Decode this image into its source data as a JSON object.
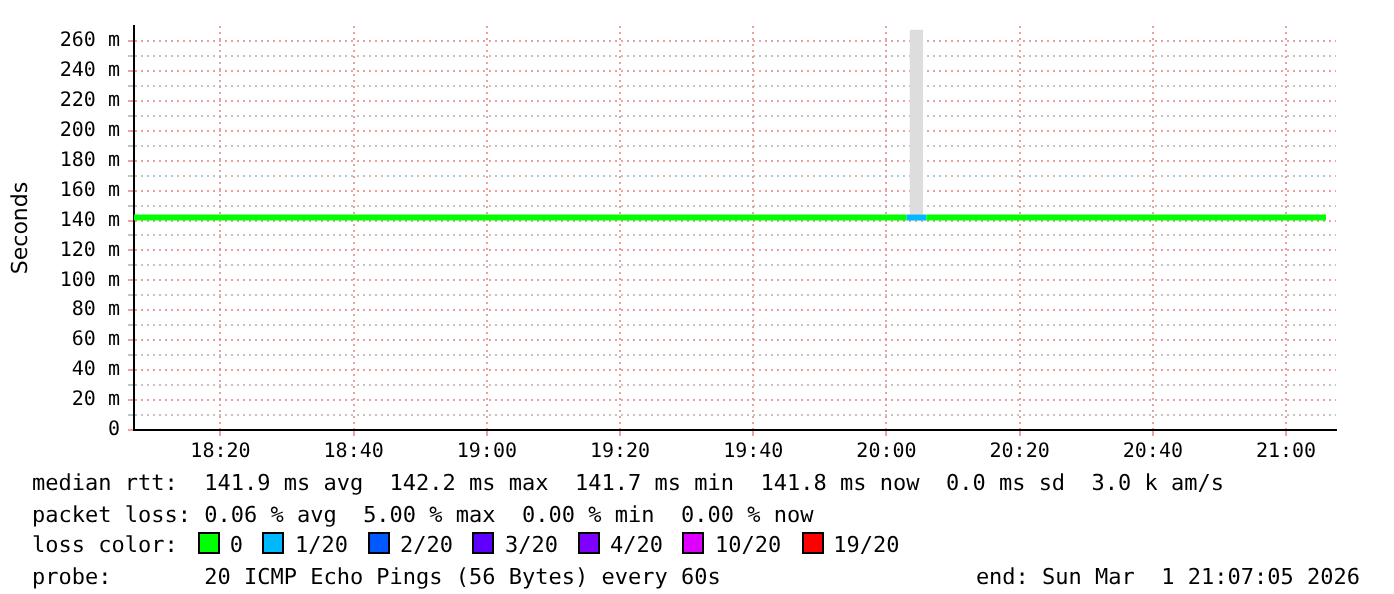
{
  "chart_data": {
    "type": "line",
    "ylabel": "Seconds",
    "legend_title": "loss color:",
    "legend": "bottom",
    "grid": true,
    "marker": "none",
    "line_style": "solid",
    "xlim": [
      18.117,
      21.125
    ],
    "ylim": [
      0,
      270
    ],
    "xticks": [
      {
        "value": 18.3333,
        "label": "18:20"
      },
      {
        "value": 18.6667,
        "label": "18:40"
      },
      {
        "value": 19,
        "label": "19:00"
      },
      {
        "value": 19.3333,
        "label": "19:20"
      },
      {
        "value": 19.6667,
        "label": "19:40"
      },
      {
        "value": 20,
        "label": "20:00"
      },
      {
        "value": 20.3333,
        "label": "20:20"
      },
      {
        "value": 20.6667,
        "label": "20:40"
      },
      {
        "value": 21,
        "label": "21:00"
      }
    ],
    "yticks": [
      0,
      {
        "value": 10,
        "label": null
      },
      {
        "value": 20,
        "label": "20 m"
      },
      {
        "value": 30,
        "label": null
      },
      {
        "value": 40,
        "label": "40 m"
      },
      {
        "value": 50,
        "label": null
      },
      {
        "value": 60,
        "label": "60 m"
      },
      {
        "value": 70,
        "label": null
      },
      {
        "value": 80,
        "label": "80 m"
      },
      {
        "value": 90,
        "label": null
      },
      {
        "value": 100,
        "label": "100 m"
      },
      {
        "value": 110,
        "label": null
      },
      {
        "value": 120,
        "label": "120 m"
      },
      {
        "value": 130,
        "label": null
      },
      {
        "value": 140,
        "label": "140 m"
      },
      {
        "value": 150,
        "label": null
      },
      {
        "value": 160,
        "label": "160 m"
      },
      {
        "value": 170,
        "label": null
      },
      {
        "value": 180,
        "label": "180 m"
      },
      {
        "value": 190,
        "label": null
      },
      {
        "value": 200,
        "label": "200 m"
      },
      {
        "value": 210,
        "label": null
      },
      {
        "value": 220,
        "label": "220 m"
      },
      {
        "value": 230,
        "label": null
      },
      {
        "value": 240,
        "label": "240 m"
      },
      {
        "value": 250,
        "label": null
      },
      {
        "value": 260,
        "label": "260 m"
      }
    ],
    "series": [
      {
        "type": "bar",
        "color": "#dddddd",
        "x": [
          20.075
        ],
        "base": [
          142
        ],
        "values": [
          125
        ]
      },
      {
        "name": "0",
        "color": "#00ff00",
        "x": [
          18.117,
          20.05,
          20.075,
          20.1,
          21.1
        ],
        "values": [
          142,
          142,
          null,
          142,
          142
        ]
      },
      {
        "name": "1/20",
        "color": "#00b8ff",
        "x": [
          20.05,
          20.1
        ],
        "values": [
          142,
          142
        ]
      },
      {
        "name": "2/20",
        "color": "#0059ff"
      },
      {
        "name": "3/20",
        "color": "#5e00ff"
      },
      {
        "name": "4/20",
        "color": "#7e00ff"
      },
      {
        "name": "10/20",
        "color": "#dd00ff"
      },
      {
        "name": "19/20",
        "color": "#ff0000"
      }
    ],
    "annotations": [
      "median rtt:  141.9 ms avg  142.2 ms max  141.7 ms min  141.8 ms now  0.0 ms sd  3.0 k am/s",
      "packet loss: 0.06 % avg  5.00 % max  0.00 % min  0.00 % now",
      "probe:       20 ICMP Echo Pings (56 Bytes) every 60s",
      "end: Sun Mar  1 21:07:05 2026"
    ]
  }
}
